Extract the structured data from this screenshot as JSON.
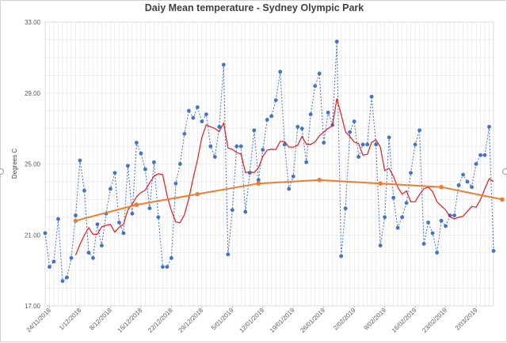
{
  "chart_data": {
    "type": "line",
    "title": "Daiy Mean temperature - Sydney Olympic Park",
    "ylabel": "Degrees C",
    "xlabel": "",
    "ylim": [
      17,
      33
    ],
    "yticks": [
      "17.00",
      "21.00",
      "25.00",
      "29.00",
      "33.00"
    ],
    "x_tick_labels": [
      "24/11/2018",
      "1/12/2018",
      "8/12/2018",
      "15/12/2018",
      "22/12/2018",
      "29/12/2018",
      "5/01/2019",
      "12/01/2019",
      "19/01/2019",
      "26/01/2019",
      "2/02/2019",
      "9/02/2019",
      "16/02/2019",
      "23/02/2019",
      "2/03/2019"
    ],
    "start_date": "23/11/2018",
    "grid": true,
    "series": [
      {
        "style": "dotted-markers",
        "color": "#4472c4",
        "values": [
          21.1,
          19.2,
          19.5,
          21.9,
          18.4,
          18.6,
          19.7,
          22.1,
          25.2,
          23.5,
          20.0,
          19.7,
          21.6,
          20.4,
          22.2,
          23.6,
          24.5,
          21.7,
          21.1,
          24.9,
          22.2,
          26.2,
          25.6,
          24.7,
          22.5,
          25.1,
          22.0,
          19.2,
          19.2,
          19.7,
          23.9,
          25.0,
          26.7,
          28.0,
          27.6,
          28.2,
          27.4,
          27.8,
          26.0,
          25.4,
          27.1,
          30.6,
          19.9,
          22.4,
          26.0,
          26.0,
          22.3,
          24.5,
          26.9,
          24.1,
          25.8,
          27.5,
          27.7,
          28.6,
          30.2,
          26.1,
          23.6,
          24.3,
          27.1,
          27.0,
          25.1,
          27.8,
          29.4,
          30.1,
          26.2,
          27.9,
          27.2,
          31.9,
          19.8,
          22.5,
          26.8,
          27.4,
          25.4,
          26.1,
          26.1,
          28.8,
          26.1,
          20.4,
          22.0,
          26.5,
          23.1,
          21.4,
          22.0,
          22.8,
          24.5,
          26.1,
          26.9,
          20.5,
          21.7,
          21.1,
          20.0,
          21.8,
          21.5,
          22.1,
          22.1,
          23.8,
          24.4,
          24.0,
          23.7,
          25.0,
          25.5,
          25.5,
          27.1,
          20.1
        ]
      },
      {
        "style": "line",
        "color": "#e41a1c",
        "values": [
          null,
          null,
          null,
          null,
          null,
          null,
          null,
          19.86,
          20.47,
          20.99,
          21.41,
          21.04,
          21.04,
          21.46,
          21.54,
          21.59,
          21.16,
          21.43,
          21.6,
          22.41,
          22.73,
          23.15,
          23.39,
          23.52,
          23.94,
          24.31,
          24.45,
          24.4,
          23.22,
          22.36,
          21.73,
          21.69,
          22.14,
          23.04,
          24.19,
          25.23,
          26.5,
          27.21,
          27.1,
          27.0,
          26.83,
          27.31,
          25.9,
          25.83,
          25.64,
          25.56,
          24.52,
          24.56,
          24.52,
          24.79,
          25.43,
          25.79,
          25.83,
          25.81,
          26.27,
          26.27,
          25.95,
          25.95,
          26.05,
          26.56,
          26.12,
          26.11,
          26.25,
          26.59,
          26.8,
          27.01,
          27.16,
          28.69,
          27.78,
          26.81,
          26.55,
          26.23,
          26.15,
          25.5,
          25.54,
          26.22,
          26.36,
          25.96,
          24.62,
          24.76,
          24.3,
          23.69,
          23.3,
          23.48,
          22.87,
          22.87,
          23.29,
          23.61,
          23.69,
          23.45,
          22.87,
          22.63,
          22.41,
          22.02,
          21.9,
          22.0,
          22.05,
          22.33,
          22.6,
          22.56,
          22.99,
          23.6,
          24.17,
          24.01
        ]
      },
      {
        "style": "markers-line",
        "color": "#ed7d31",
        "points": [
          [
            7,
            21.8
          ],
          [
            21,
            22.7
          ],
          [
            35,
            23.3
          ],
          [
            49,
            23.9
          ],
          [
            63,
            24.1
          ],
          [
            77,
            23.9
          ],
          [
            91,
            23.7
          ],
          [
            105,
            23.0
          ]
        ]
      }
    ]
  }
}
